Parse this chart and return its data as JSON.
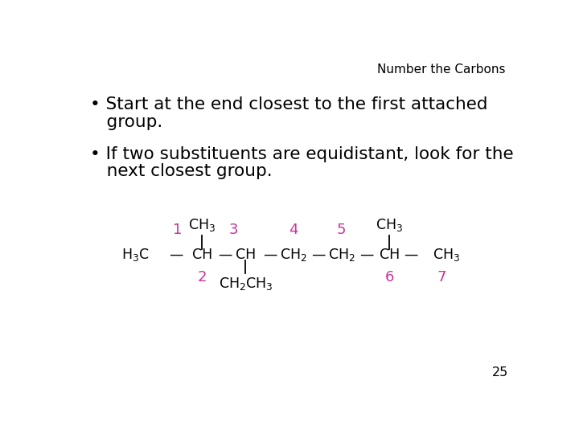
{
  "title": "Number the Carbons",
  "title_fontsize": 11,
  "title_color": "#000000",
  "background_color": "#ffffff",
  "bullet1_line1": "• Start at the end closest to the first attached",
  "bullet1_line2": "   group.",
  "bullet2_line1": "• If two substituents are equidistant, look for the",
  "bullet2_line2": "   next closest group.",
  "bullet_fontsize": 15.5,
  "bullet_color": "#000000",
  "page_number": "25",
  "number_color": "#cc3399",
  "structure_color": "#000000",
  "structure_fontsize": 12.5,
  "chem_font": "DejaVu Sans"
}
